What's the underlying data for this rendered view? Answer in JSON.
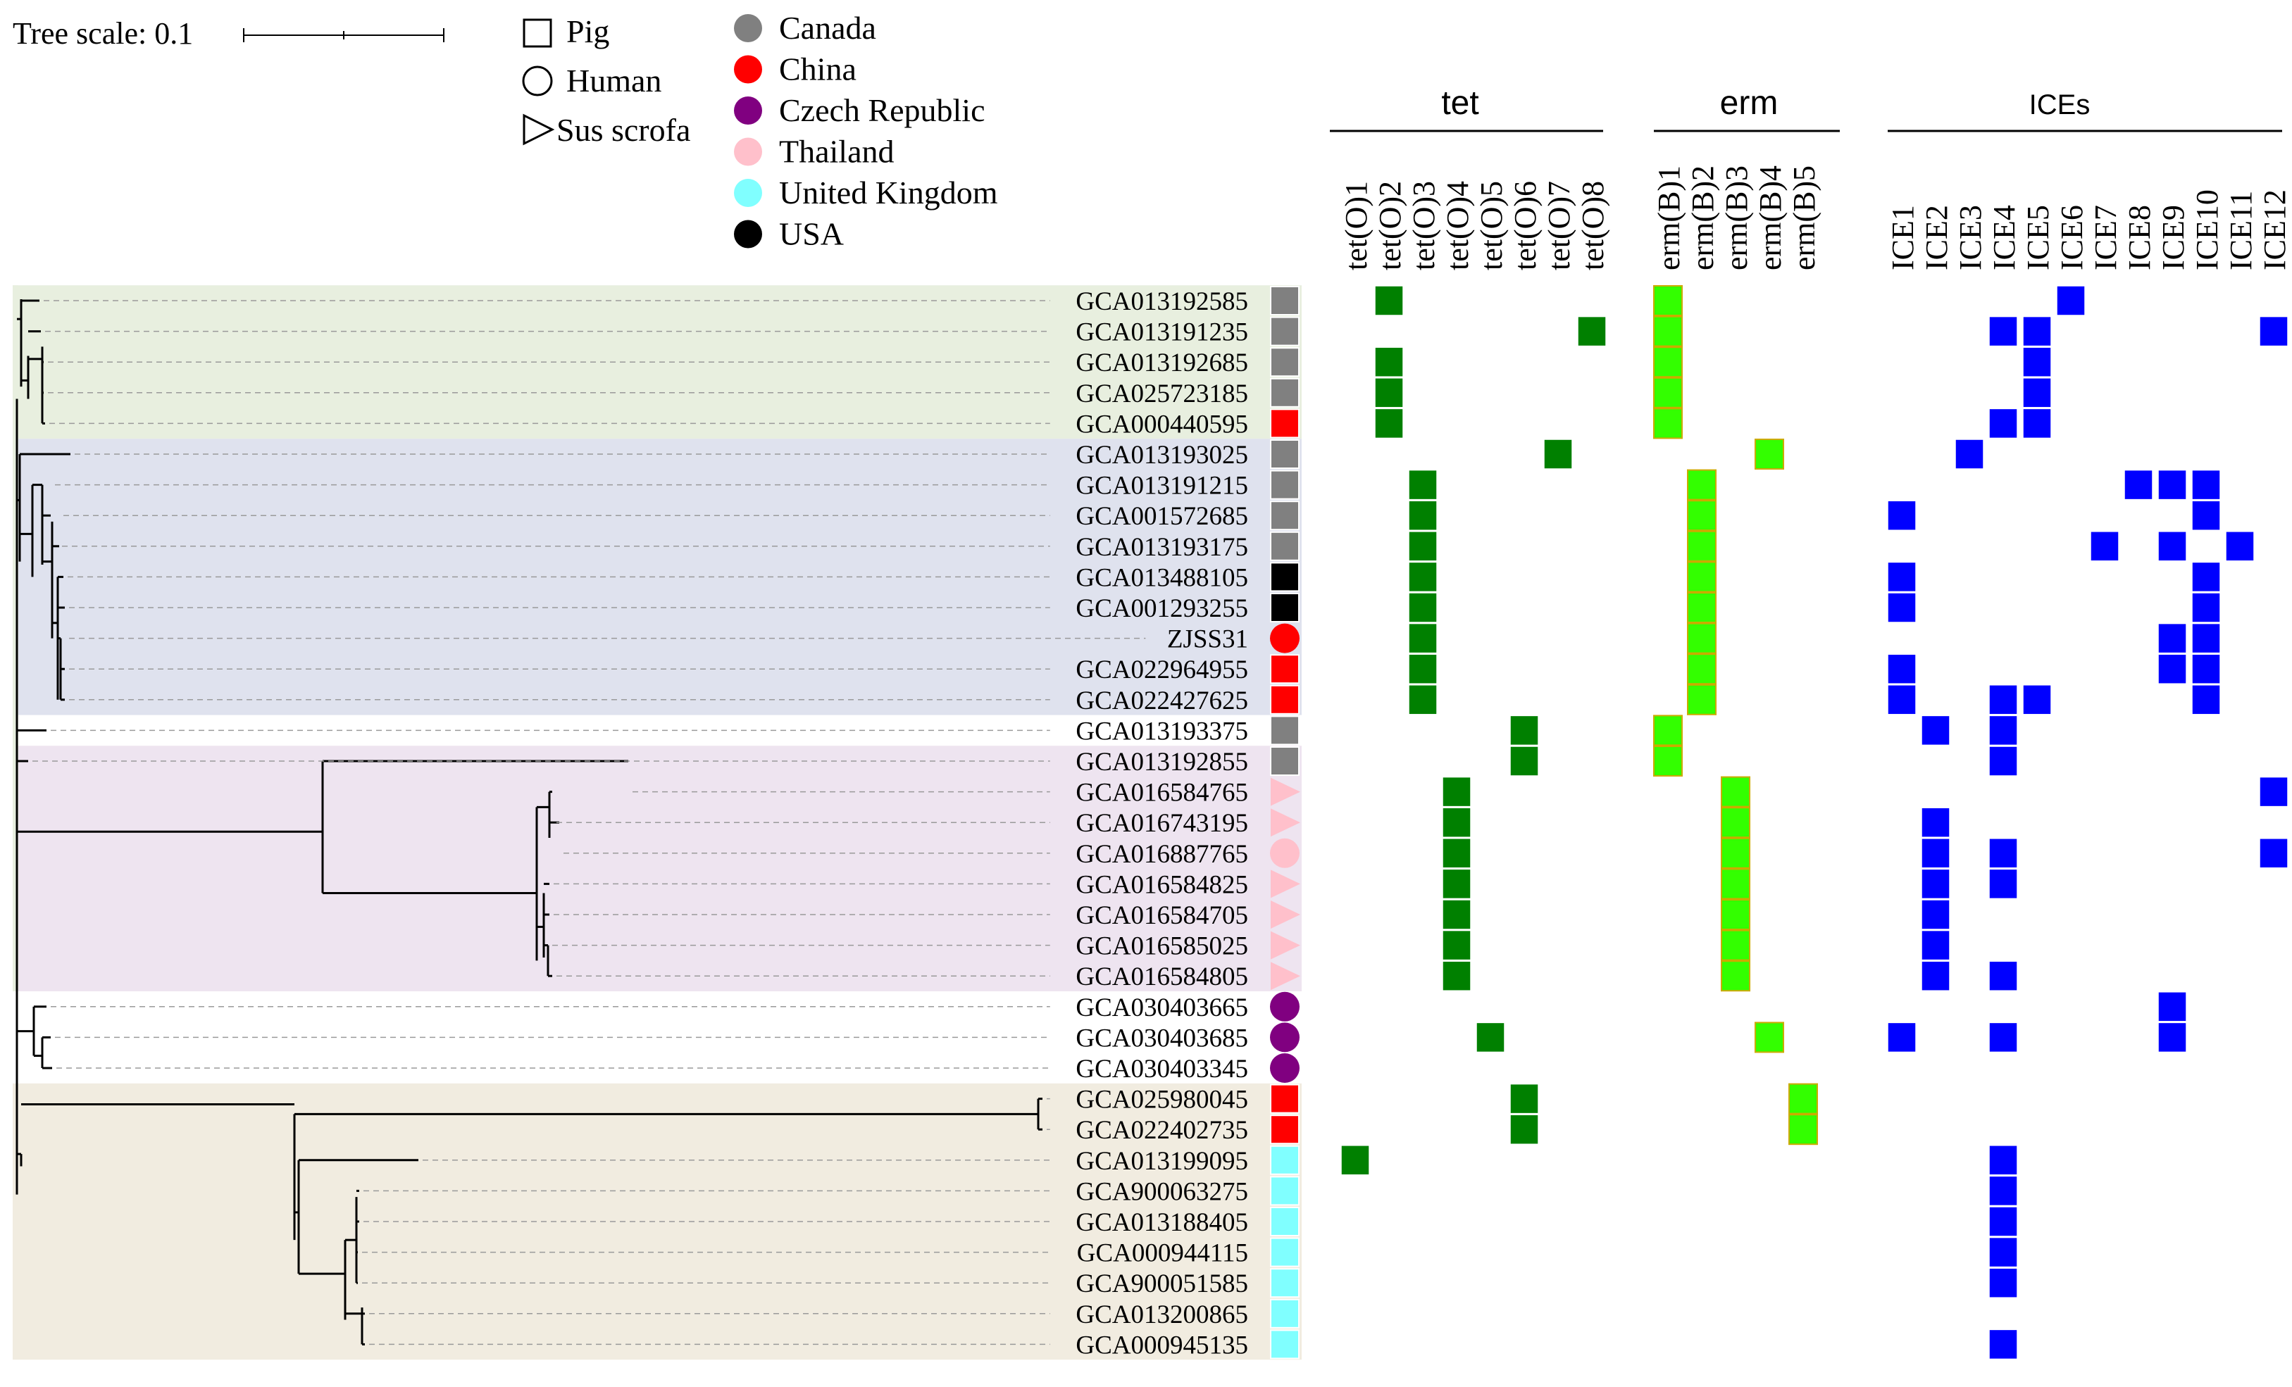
{
  "tree_scale": {
    "label": "Tree scale: 0.1"
  },
  "legend_hosts": [
    {
      "shape": "square",
      "label": "Pig"
    },
    {
      "shape": "circle",
      "label": "Human"
    },
    {
      "shape": "triangle",
      "label": "Sus scrofa"
    }
  ],
  "legend_countries": [
    {
      "label": "Canada",
      "color": "#808080"
    },
    {
      "label": "China",
      "color": "#ff0000"
    },
    {
      "label": "Czech Republic",
      "color": "#800080"
    },
    {
      "label": "Thailand",
      "color": "#ffc0cb"
    },
    {
      "label": "United Kingdom",
      "color": "#80ffff"
    },
    {
      "label": "USA",
      "color": "#000000"
    }
  ],
  "groups": [
    {
      "title": "tet",
      "genes": [
        "tet(O)1",
        "tet(O)2",
        "tet(O)3",
        "tet(O)4",
        "tet(O)5",
        "tet(O)6",
        "tet(O)7",
        "tet(O)8"
      ],
      "color": "#008000"
    },
    {
      "title": "erm",
      "genes": [
        "erm(B)1",
        "erm(B)2",
        "erm(B)3",
        "erm(B)4",
        "erm(B)5"
      ],
      "color": "#33ff00"
    },
    {
      "title": "ICEs",
      "genes": [
        "ICE1",
        "ICE2",
        "ICE3",
        "ICE4",
        "ICE5",
        "ICE6",
        "ICE7",
        "ICE8",
        "ICE9",
        "ICE10",
        "ICE11",
        "ICE12"
      ],
      "color": "#0000ff"
    }
  ],
  "clade_colors": [
    "#e8efdf",
    "#dfe2ee",
    "#eee4f0",
    "#f1ece0"
  ],
  "strains": [
    {
      "id": "GCA013192585",
      "host": "square",
      "country": "Canada",
      "tet": [
        2
      ],
      "erm": [
        1
      ],
      "ice": [
        6
      ]
    },
    {
      "id": "GCA013191235",
      "host": "square",
      "country": "Canada",
      "tet": [
        8
      ],
      "erm": [
        1
      ],
      "ice": [
        4,
        5,
        12
      ]
    },
    {
      "id": "GCA013192685",
      "host": "square",
      "country": "Canada",
      "tet": [
        2
      ],
      "erm": [
        1
      ],
      "ice": [
        5
      ]
    },
    {
      "id": "GCA025723185",
      "host": "square",
      "country": "Canada",
      "tet": [
        2
      ],
      "erm": [
        1
      ],
      "ice": [
        5
      ]
    },
    {
      "id": "GCA000440595",
      "host": "square",
      "country": "China",
      "tet": [
        2
      ],
      "erm": [
        1
      ],
      "ice": [
        4,
        5
      ]
    },
    {
      "id": "GCA013193025",
      "host": "square",
      "country": "Canada",
      "tet": [
        7
      ],
      "erm": [
        4
      ],
      "ice": [
        3
      ]
    },
    {
      "id": "GCA013191215",
      "host": "square",
      "country": "Canada",
      "tet": [
        3
      ],
      "erm": [
        2
      ],
      "ice": [
        8,
        9,
        10
      ]
    },
    {
      "id": "GCA001572685",
      "host": "square",
      "country": "Canada",
      "tet": [
        3
      ],
      "erm": [
        2
      ],
      "ice": [
        1,
        10
      ]
    },
    {
      "id": "GCA013193175",
      "host": "square",
      "country": "Canada",
      "tet": [
        3
      ],
      "erm": [
        2
      ],
      "ice": [
        7,
        9,
        11
      ]
    },
    {
      "id": "GCA013488105",
      "host": "square",
      "country": "USA",
      "tet": [
        3
      ],
      "erm": [
        2
      ],
      "ice": [
        1,
        10
      ]
    },
    {
      "id": "GCA001293255",
      "host": "square",
      "country": "USA",
      "tet": [
        3
      ],
      "erm": [
        2
      ],
      "ice": [
        1,
        10
      ]
    },
    {
      "id": "ZJSS31",
      "host": "circle",
      "country": "China",
      "tet": [
        3
      ],
      "erm": [
        2
      ],
      "ice": [
        9,
        10
      ]
    },
    {
      "id": "GCA022964955",
      "host": "square",
      "country": "China",
      "tet": [
        3
      ],
      "erm": [
        2
      ],
      "ice": [
        1,
        9,
        10
      ]
    },
    {
      "id": "GCA022427625",
      "host": "square",
      "country": "China",
      "tet": [
        3
      ],
      "erm": [
        2
      ],
      "ice": [
        1,
        4,
        5,
        10
      ]
    },
    {
      "id": "GCA013193375",
      "host": "square",
      "country": "Canada",
      "tet": [
        6
      ],
      "erm": [
        1
      ],
      "ice": [
        2,
        4
      ]
    },
    {
      "id": "GCA013192855",
      "host": "square",
      "country": "Canada",
      "tet": [
        6
      ],
      "erm": [
        1
      ],
      "ice": [
        4
      ]
    },
    {
      "id": "GCA016584765",
      "host": "triangle",
      "country": "Thailand",
      "tet": [
        4
      ],
      "erm": [
        3
      ],
      "ice": [
        12
      ]
    },
    {
      "id": "GCA016743195",
      "host": "triangle",
      "country": "Thailand",
      "tet": [
        4
      ],
      "erm": [
        3
      ],
      "ice": [
        2
      ]
    },
    {
      "id": "GCA016887765",
      "host": "circle",
      "country": "Thailand",
      "tet": [
        4
      ],
      "erm": [
        3
      ],
      "ice": [
        2,
        4,
        12
      ]
    },
    {
      "id": "GCA016584825",
      "host": "triangle",
      "country": "Thailand",
      "tet": [
        4
      ],
      "erm": [
        3
      ],
      "ice": [
        2,
        4
      ]
    },
    {
      "id": "GCA016584705",
      "host": "triangle",
      "country": "Thailand",
      "tet": [
        4
      ],
      "erm": [
        3
      ],
      "ice": [
        2
      ]
    },
    {
      "id": "GCA016585025",
      "host": "triangle",
      "country": "Thailand",
      "tet": [
        4
      ],
      "erm": [
        3
      ],
      "ice": [
        2
      ]
    },
    {
      "id": "GCA016584805",
      "host": "triangle",
      "country": "Thailand",
      "tet": [
        4
      ],
      "erm": [
        3
      ],
      "ice": [
        2,
        4
      ]
    },
    {
      "id": "GCA030403665",
      "host": "circle",
      "country": "Czech Republic",
      "tet": [],
      "erm": [],
      "ice": [
        9
      ]
    },
    {
      "id": "GCA030403685",
      "host": "circle",
      "country": "Czech Republic",
      "tet": [
        5
      ],
      "erm": [
        4
      ],
      "ice": [
        1,
        4,
        9
      ]
    },
    {
      "id": "GCA030403345",
      "host": "circle",
      "country": "Czech Republic",
      "tet": [],
      "erm": [],
      "ice": []
    },
    {
      "id": "GCA025980045",
      "host": "square",
      "country": "China",
      "tet": [
        6
      ],
      "erm": [
        5
      ],
      "ice": []
    },
    {
      "id": "GCA022402735",
      "host": "square",
      "country": "China",
      "tet": [
        6
      ],
      "erm": [
        5
      ],
      "ice": []
    },
    {
      "id": "GCA013199095",
      "host": "square",
      "country": "United Kingdom",
      "tet": [
        1
      ],
      "erm": [],
      "ice": [
        4
      ]
    },
    {
      "id": "GCA900063275",
      "host": "square",
      "country": "United Kingdom",
      "tet": [],
      "erm": [],
      "ice": [
        4
      ]
    },
    {
      "id": "GCA013188405",
      "host": "square",
      "country": "United Kingdom",
      "tet": [],
      "erm": [],
      "ice": [
        4
      ]
    },
    {
      "id": "GCA000944115",
      "host": "square",
      "country": "United Kingdom",
      "tet": [],
      "erm": [],
      "ice": [
        4
      ]
    },
    {
      "id": "GCA900051585",
      "host": "square",
      "country": "United Kingdom",
      "tet": [],
      "erm": [],
      "ice": [
        4
      ]
    },
    {
      "id": "GCA013200865",
      "host": "square",
      "country": "United Kingdom",
      "tet": [],
      "erm": [],
      "ice": []
    },
    {
      "id": "GCA000945135",
      "host": "square",
      "country": "United Kingdom",
      "tet": [],
      "erm": [],
      "ice": [
        4
      ]
    }
  ]
}
